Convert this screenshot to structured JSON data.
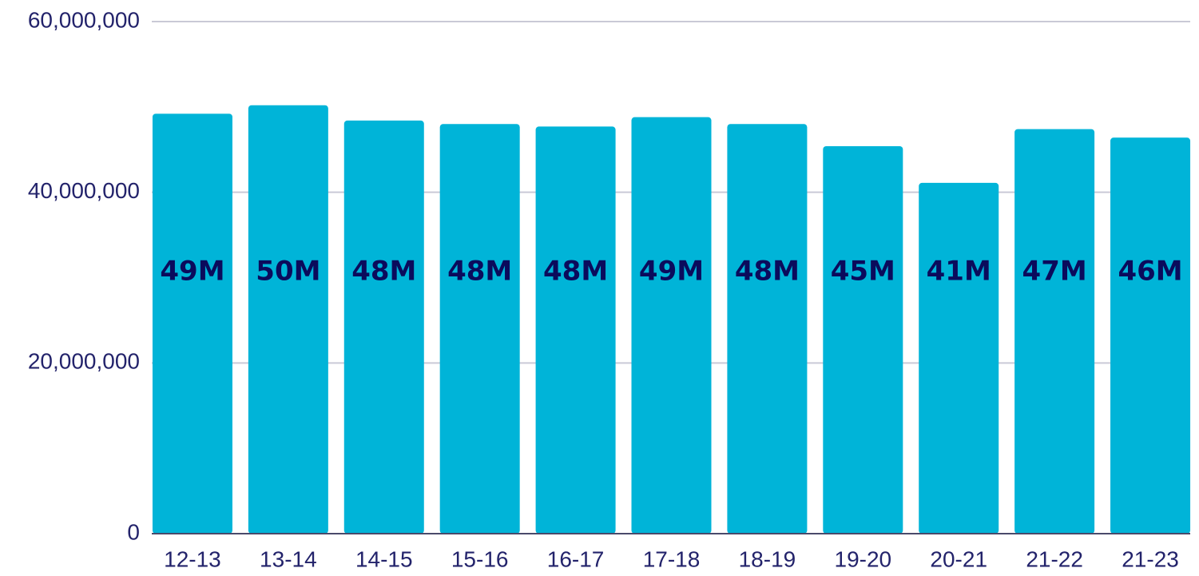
{
  "chart_data": {
    "type": "bar",
    "categories": [
      "12-13",
      "13-14",
      "14-15",
      "15-16",
      "16-17",
      "17-18",
      "18-19",
      "19-20",
      "20-21",
      "21-22",
      "21-23"
    ],
    "values": [
      49200000,
      50200000,
      48400000,
      48000000,
      47700000,
      48800000,
      48000000,
      45400000,
      41100000,
      47400000,
      46400000
    ],
    "value_labels": [
      "49M",
      "50M",
      "48M",
      "48M",
      "48M",
      "49M",
      "48M",
      "45M",
      "41M",
      "47M",
      "46M"
    ],
    "color": "#00b4d8",
    "ylim": [
      0,
      60000000
    ],
    "yticks": [
      0,
      {
        "value": 20000000,
        "label": "20,000,000"
      },
      {
        "value": 40000000,
        "label": "40,000,000"
      },
      {
        "value": 60000000,
        "label": "60,000,000"
      }
    ],
    "grid": true
  }
}
